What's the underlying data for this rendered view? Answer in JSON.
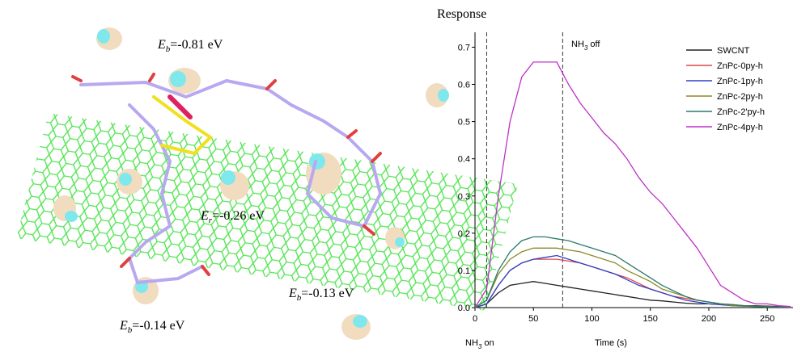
{
  "energy_labels": [
    [
      "E",
      "b",
      "=-0.81 eV"
    ],
    [
      "E",
      "r",
      "=-0.26 eV"
    ],
    [
      "E",
      "b",
      "=-0.14 eV"
    ],
    [
      "E",
      "b",
      "=-0.13 eV"
    ]
  ],
  "chart_data": {
    "type": "line",
    "y_label": "Response",
    "x_label": "Time (s)",
    "event_labels": [
      [
        "NH",
        "3",
        " on"
      ],
      [
        "NH",
        "3",
        " off"
      ]
    ],
    "event_lines": [
      10,
      75
    ],
    "xlim": [
      0,
      272
    ],
    "xticks": [
      0,
      50,
      100,
      150,
      200,
      250
    ],
    "ylim": [
      0,
      0.74
    ],
    "yticks": [
      {
        "value": 0,
        "label": "0.0"
      },
      0.1,
      0.2,
      0.3,
      0.4,
      0.5,
      0.6,
      0.7
    ],
    "x": [
      0,
      10,
      20,
      30,
      40,
      50,
      60,
      70,
      80,
      90,
      100,
      110,
      120,
      130,
      140,
      150,
      160,
      170,
      180,
      190,
      200,
      210,
      220,
      230,
      240,
      250,
      260,
      270
    ],
    "series": [
      {
        "name": "SWCNT",
        "color": "#222222",
        "values": [
          0,
          0.01,
          0.04,
          0.06,
          0.065,
          0.07,
          0.065,
          0.06,
          0.055,
          0.05,
          0.045,
          0.04,
          0.035,
          0.03,
          0.025,
          0.02,
          0.018,
          0.015,
          0.012,
          0.01,
          0.01,
          0.008,
          0.006,
          0.005,
          0.005,
          0.004,
          0.003,
          0.003
        ]
      },
      {
        "name": "ZnPc-0py-h",
        "color": "#e04848",
        "values": [
          0,
          0.01,
          0.06,
          0.1,
          0.12,
          0.13,
          0.13,
          0.13,
          0.125,
          0.12,
          0.11,
          0.1,
          0.09,
          0.08,
          0.065,
          0.05,
          0.04,
          0.03,
          0.025,
          0.02,
          0.015,
          0.01,
          0.008,
          0.005,
          0.004,
          0.003,
          0.002,
          0.002
        ]
      },
      {
        "name": "ZnPc-1py-h",
        "color": "#3040c8",
        "values": [
          0,
          0.01,
          0.06,
          0.1,
          0.12,
          0.13,
          0.135,
          0.14,
          0.13,
          0.12,
          0.11,
          0.1,
          0.09,
          0.075,
          0.06,
          0.05,
          0.04,
          0.03,
          0.02,
          0.015,
          0.01,
          0.008,
          0.005,
          0.004,
          0.003,
          0.002,
          0.002,
          0.001
        ]
      },
      {
        "name": "ZnPc-2py-h",
        "color": "#8a8a28",
        "values": [
          0,
          0.02,
          0.09,
          0.13,
          0.15,
          0.16,
          0.16,
          0.16,
          0.155,
          0.15,
          0.14,
          0.13,
          0.12,
          0.1,
          0.085,
          0.07,
          0.05,
          0.04,
          0.03,
          0.02,
          0.015,
          0.01,
          0.005,
          0.004,
          0.003,
          0.002,
          0.002,
          0.001
        ]
      },
      {
        "name": "ZnPc-2'py-h",
        "color": "#2a7a6a",
        "values": [
          0,
          0.02,
          0.1,
          0.15,
          0.18,
          0.19,
          0.19,
          0.185,
          0.18,
          0.17,
          0.16,
          0.15,
          0.14,
          0.12,
          0.1,
          0.08,
          0.06,
          0.045,
          0.03,
          0.02,
          0.015,
          0.01,
          0.008,
          0.005,
          0.004,
          0.003,
          0.002,
          0.002
        ]
      },
      {
        "name": "ZnPc-4py-h",
        "color": "#c030c8",
        "values": [
          0,
          0.05,
          0.3,
          0.5,
          0.62,
          0.66,
          0.66,
          0.66,
          0.6,
          0.55,
          0.51,
          0.47,
          0.44,
          0.4,
          0.35,
          0.31,
          0.28,
          0.24,
          0.2,
          0.16,
          0.11,
          0.06,
          0.04,
          0.02,
          0.01,
          0.01,
          0.005,
          0.003
        ]
      }
    ]
  }
}
